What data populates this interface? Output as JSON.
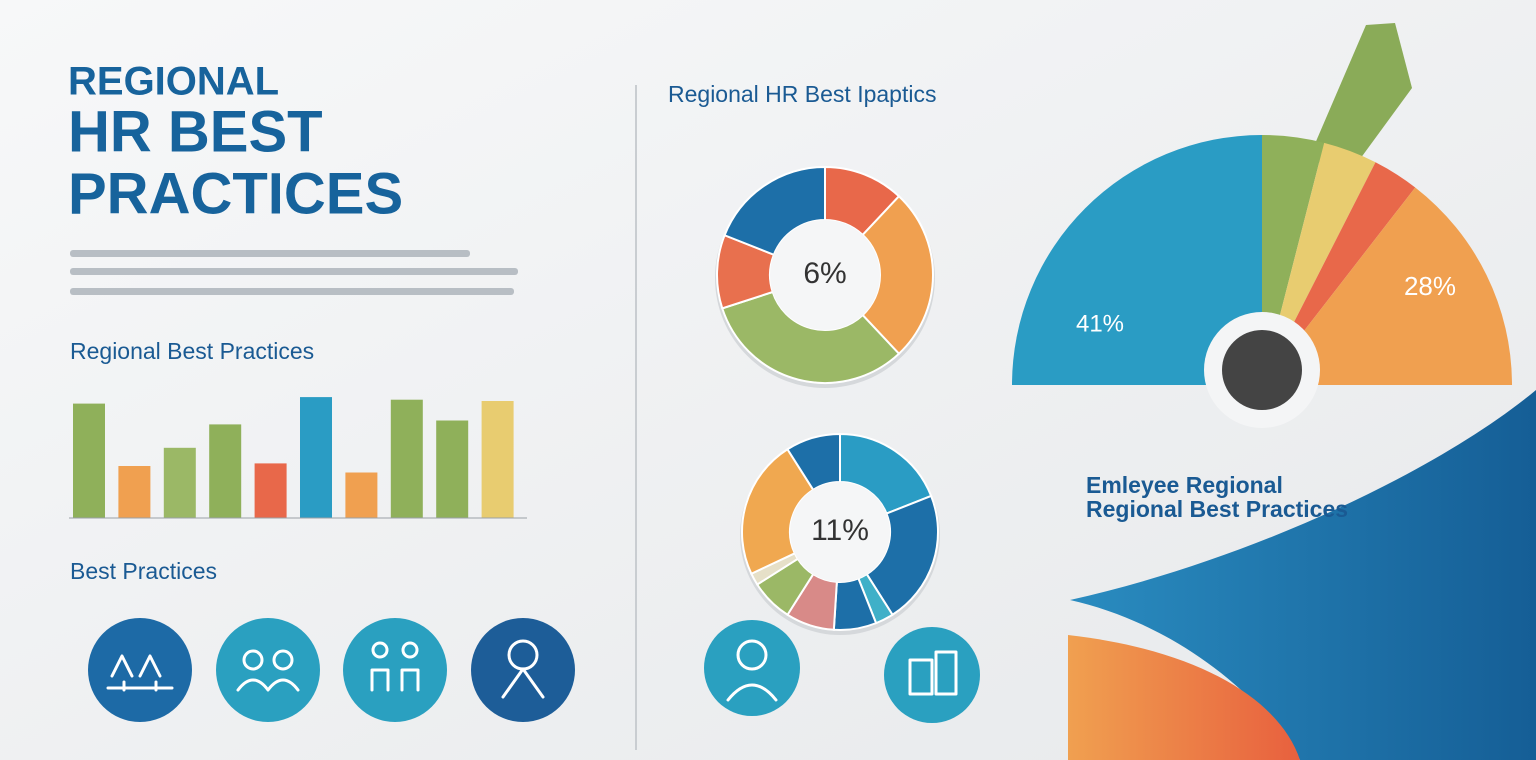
{
  "header": {
    "title": [
      "REGIONAL",
      "HR BEST",
      "PRACTICES"
    ]
  },
  "left": {
    "subtitle": "Best Practices"
  },
  "right": {
    "title": [
      "Emleyee Regional",
      "Regional Best Practices"
    ]
  },
  "chart_data": [
    {
      "type": "bar",
      "title": "Regional Best Practices",
      "categories": [
        null,
        null,
        null,
        null,
        null,
        null,
        null,
        null,
        null,
        null
      ],
      "values": [
        88,
        40,
        54,
        72,
        42,
        93,
        35,
        91,
        75,
        90
      ],
      "colors": [
        "#8fb05a",
        "#f0a050",
        "#9bb866",
        "#8fb05a",
        "#e8684a",
        "#2a9cc4",
        "#f0a050",
        "#8fb05a",
        "#8fb05a",
        "#e8cc70"
      ],
      "ylim": [
        0,
        100
      ]
    },
    {
      "type": "donut",
      "title": "Regional HR Best Ipaptics",
      "values": [
        12,
        26,
        32,
        11,
        19
      ],
      "colors": [
        "#e8684a",
        "#f0a050",
        "#9bb866",
        "#e8704e",
        "#1d6fa8"
      ],
      "center_label": "6%"
    },
    {
      "type": "donut",
      "values": [
        19,
        22,
        3,
        7,
        8,
        7,
        2,
        23,
        9
      ],
      "colors": [
        "#2a9cc4",
        "#1d6fa8",
        "#3fb0c8",
        "#1d6fa8",
        "#d88a88",
        "#9bb866",
        "#e6e0c8",
        "#f0a850",
        "#1d6fa8"
      ],
      "center_label": "11%"
    },
    {
      "type": "gauge",
      "values": [
        50,
        8,
        7,
        6,
        29
      ],
      "colors": [
        "#2a9cc4",
        "#8fb05a",
        "#e8cc70",
        "#e8684a",
        "#f0a050"
      ],
      "annotations": [
        "41%",
        "28%"
      ]
    }
  ]
}
